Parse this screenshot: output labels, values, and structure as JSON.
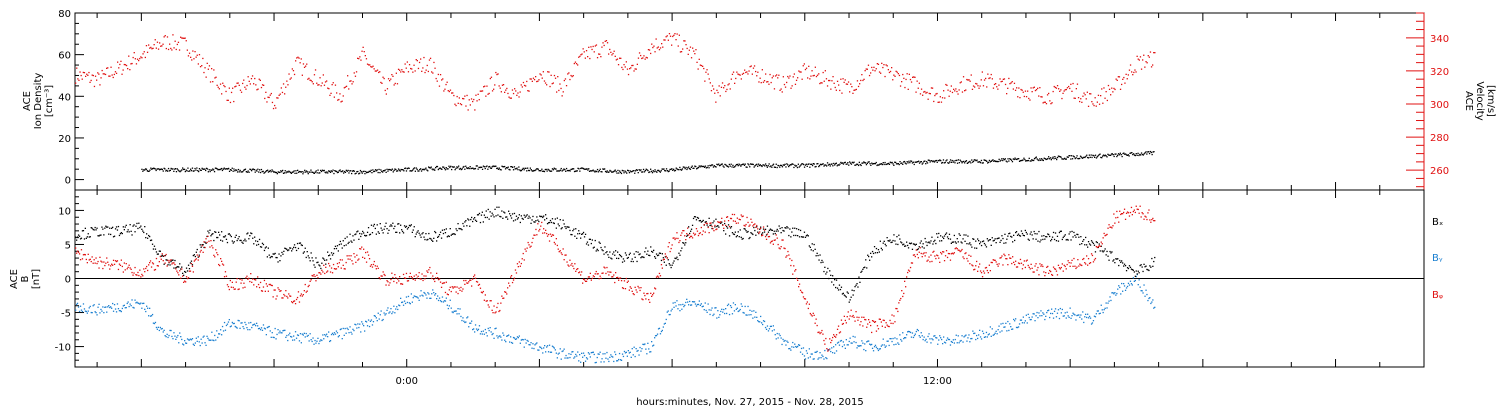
{
  "colors": {
    "density": "#000000",
    "velocity": "#e01010",
    "bx": "#000000",
    "by": "#1a7fd0",
    "bz": "#e01010",
    "axis": "#000000"
  },
  "xaxis": {
    "label": "hours:minutes, Nov. 27, 2015 - Nov. 28, 2015",
    "ticks": [
      {
        "label": "0:00",
        "hour": 24
      },
      {
        "label": "12:00",
        "hour": 36
      }
    ],
    "range_hours": [
      16.5,
      47.0
    ]
  },
  "chart_data": [
    {
      "type": "scatter",
      "title": "",
      "ylabel": [
        "ACE",
        "Ion Density",
        "[cm⁻³]"
      ],
      "ylim": [
        -5,
        80
      ],
      "yticks": [
        0,
        20,
        40,
        60,
        80
      ],
      "y2label": [
        "ACE",
        "Velocity",
        "[km/s]"
      ],
      "y2lim": [
        248,
        355
      ],
      "y2ticks": [
        260,
        280,
        300,
        320,
        340
      ],
      "series": [
        {
          "key": "density",
          "axis": "left",
          "x_hours": [
            18.0,
            19.0,
            20.0,
            21.0,
            22.0,
            23.0,
            24.0,
            25.0,
            26.0,
            27.0,
            28.0,
            29.0,
            30.0,
            31.0,
            32.0,
            33.0,
            34.0,
            35.0,
            36.0,
            37.0,
            38.0,
            39.0,
            40.0,
            40.9
          ],
          "values": [
            5,
            5,
            5,
            4,
            4,
            4,
            5,
            6,
            6,
            5,
            5,
            4,
            5,
            7,
            7,
            7,
            8,
            8,
            9,
            9,
            10,
            11,
            12,
            13
          ]
        },
        {
          "key": "velocity",
          "axis": "right",
          "x_hours": [
            16.5,
            17.0,
            17.5,
            18.0,
            18.5,
            19.0,
            19.5,
            20.0,
            20.5,
            21.0,
            21.5,
            22.0,
            22.5,
            23.0,
            23.5,
            24.0,
            24.5,
            25.0,
            25.5,
            26.0,
            26.5,
            27.0,
            27.5,
            28.0,
            28.5,
            29.0,
            29.5,
            30.0,
            30.5,
            31.0,
            31.5,
            32.0,
            32.5,
            33.0,
            33.5,
            34.0,
            34.5,
            35.0,
            35.5,
            36.0,
            36.5,
            37.0,
            37.5,
            38.0,
            38.5,
            39.0,
            39.5,
            40.0,
            40.5,
            40.9
          ],
          "values": [
            318,
            315,
            322,
            330,
            338,
            336,
            320,
            305,
            315,
            300,
            325,
            315,
            305,
            330,
            310,
            322,
            325,
            305,
            300,
            315,
            305,
            320,
            310,
            330,
            335,
            320,
            335,
            340,
            330,
            305,
            320,
            318,
            312,
            320,
            315,
            310,
            322,
            318,
            312,
            305,
            312,
            315,
            312,
            308,
            305,
            310,
            302,
            310,
            325,
            328
          ]
        }
      ]
    },
    {
      "type": "scatter",
      "title": "",
      "ylabel": [
        "ACE",
        "B",
        "[nT]"
      ],
      "ylim": [
        -13,
        13
      ],
      "yticks": [
        -10,
        -5,
        0,
        5,
        10
      ],
      "zero_line": true,
      "legend": [
        "Bₓ",
        "Bᵧ",
        "Bᵩ"
      ],
      "series": [
        {
          "key": "bx",
          "name": "Bx",
          "x_hours": [
            16.5,
            17.0,
            17.5,
            18.0,
            18.5,
            19.0,
            19.5,
            20.0,
            20.5,
            21.0,
            21.5,
            22.0,
            22.5,
            23.0,
            23.5,
            24.0,
            24.5,
            25.0,
            25.5,
            26.0,
            26.5,
            27.0,
            27.5,
            28.0,
            28.5,
            29.0,
            29.5,
            30.0,
            30.5,
            31.0,
            31.5,
            32.0,
            32.5,
            33.0,
            33.5,
            34.0,
            34.5,
            35.0,
            35.5,
            36.0,
            36.5,
            37.0,
            37.5,
            38.0,
            38.5,
            39.0,
            39.5,
            40.0,
            40.5,
            40.9
          ],
          "values": [
            6.5,
            7,
            7,
            7.5,
            3,
            1,
            6.5,
            6,
            6,
            3,
            5,
            2,
            5,
            7,
            7.5,
            7.5,
            6,
            7,
            8.5,
            10,
            9,
            9,
            8,
            6,
            4,
            3,
            4,
            2,
            9,
            8,
            6.5,
            7,
            7,
            6.5,
            1,
            -3,
            4,
            6,
            5,
            6,
            6,
            5,
            6,
            6.5,
            6,
            6.5,
            5,
            3,
            1,
            2.5
          ]
        },
        {
          "key": "by",
          "name": "By",
          "x_hours": [
            16.5,
            17.0,
            17.5,
            18.0,
            18.5,
            19.0,
            19.5,
            20.0,
            20.5,
            21.0,
            21.5,
            22.0,
            22.5,
            23.0,
            23.5,
            24.0,
            24.5,
            25.0,
            25.5,
            26.0,
            26.5,
            27.0,
            27.5,
            28.0,
            28.5,
            29.0,
            29.5,
            30.0,
            30.5,
            31.0,
            31.5,
            32.0,
            32.5,
            33.0,
            33.5,
            34.0,
            34.5,
            35.0,
            35.5,
            36.0,
            36.5,
            37.0,
            37.5,
            38.0,
            38.5,
            39.0,
            39.5,
            40.0,
            40.5,
            40.9
          ],
          "values": [
            -4,
            -4.5,
            -4,
            -3.5,
            -8,
            -9,
            -9,
            -6.5,
            -7,
            -8,
            -8.5,
            -9,
            -8,
            -7,
            -5,
            -3,
            -2,
            -4,
            -7,
            -8,
            -9,
            -10,
            -11,
            -11.5,
            -11.5,
            -11,
            -10,
            -4,
            -3.5,
            -5,
            -4,
            -6,
            -9,
            -11,
            -11,
            -9,
            -10,
            -9,
            -8,
            -9,
            -9,
            -8,
            -7,
            -6,
            -5,
            -5,
            -6,
            -2,
            0,
            -4
          ]
        },
        {
          "key": "bz",
          "name": "Bz",
          "x_hours": [
            16.5,
            17.0,
            17.5,
            18.0,
            18.5,
            19.0,
            19.5,
            20.0,
            20.5,
            21.0,
            21.5,
            22.0,
            22.5,
            23.0,
            23.5,
            24.0,
            24.5,
            25.0,
            25.5,
            26.0,
            26.5,
            27.0,
            27.5,
            28.0,
            28.5,
            29.0,
            29.5,
            30.0,
            30.5,
            31.0,
            31.5,
            32.0,
            32.5,
            33.0,
            33.5,
            34.0,
            34.5,
            35.0,
            35.5,
            36.0,
            36.5,
            37.0,
            37.5,
            38.0,
            38.5,
            39.0,
            39.5,
            40.0,
            40.5,
            40.9
          ],
          "values": [
            4,
            2.5,
            2,
            1,
            3,
            0,
            6,
            -1,
            0,
            -2,
            -3,
            1,
            2,
            4,
            0,
            0,
            1,
            -2,
            0,
            -5,
            2,
            8,
            4,
            0,
            1,
            -1,
            -3,
            6,
            7,
            8,
            9,
            7,
            5,
            -3,
            -10,
            -5,
            -7,
            -6,
            4,
            3,
            4,
            1,
            3,
            2,
            1,
            2,
            3,
            9,
            10,
            9
          ]
        }
      ]
    }
  ]
}
